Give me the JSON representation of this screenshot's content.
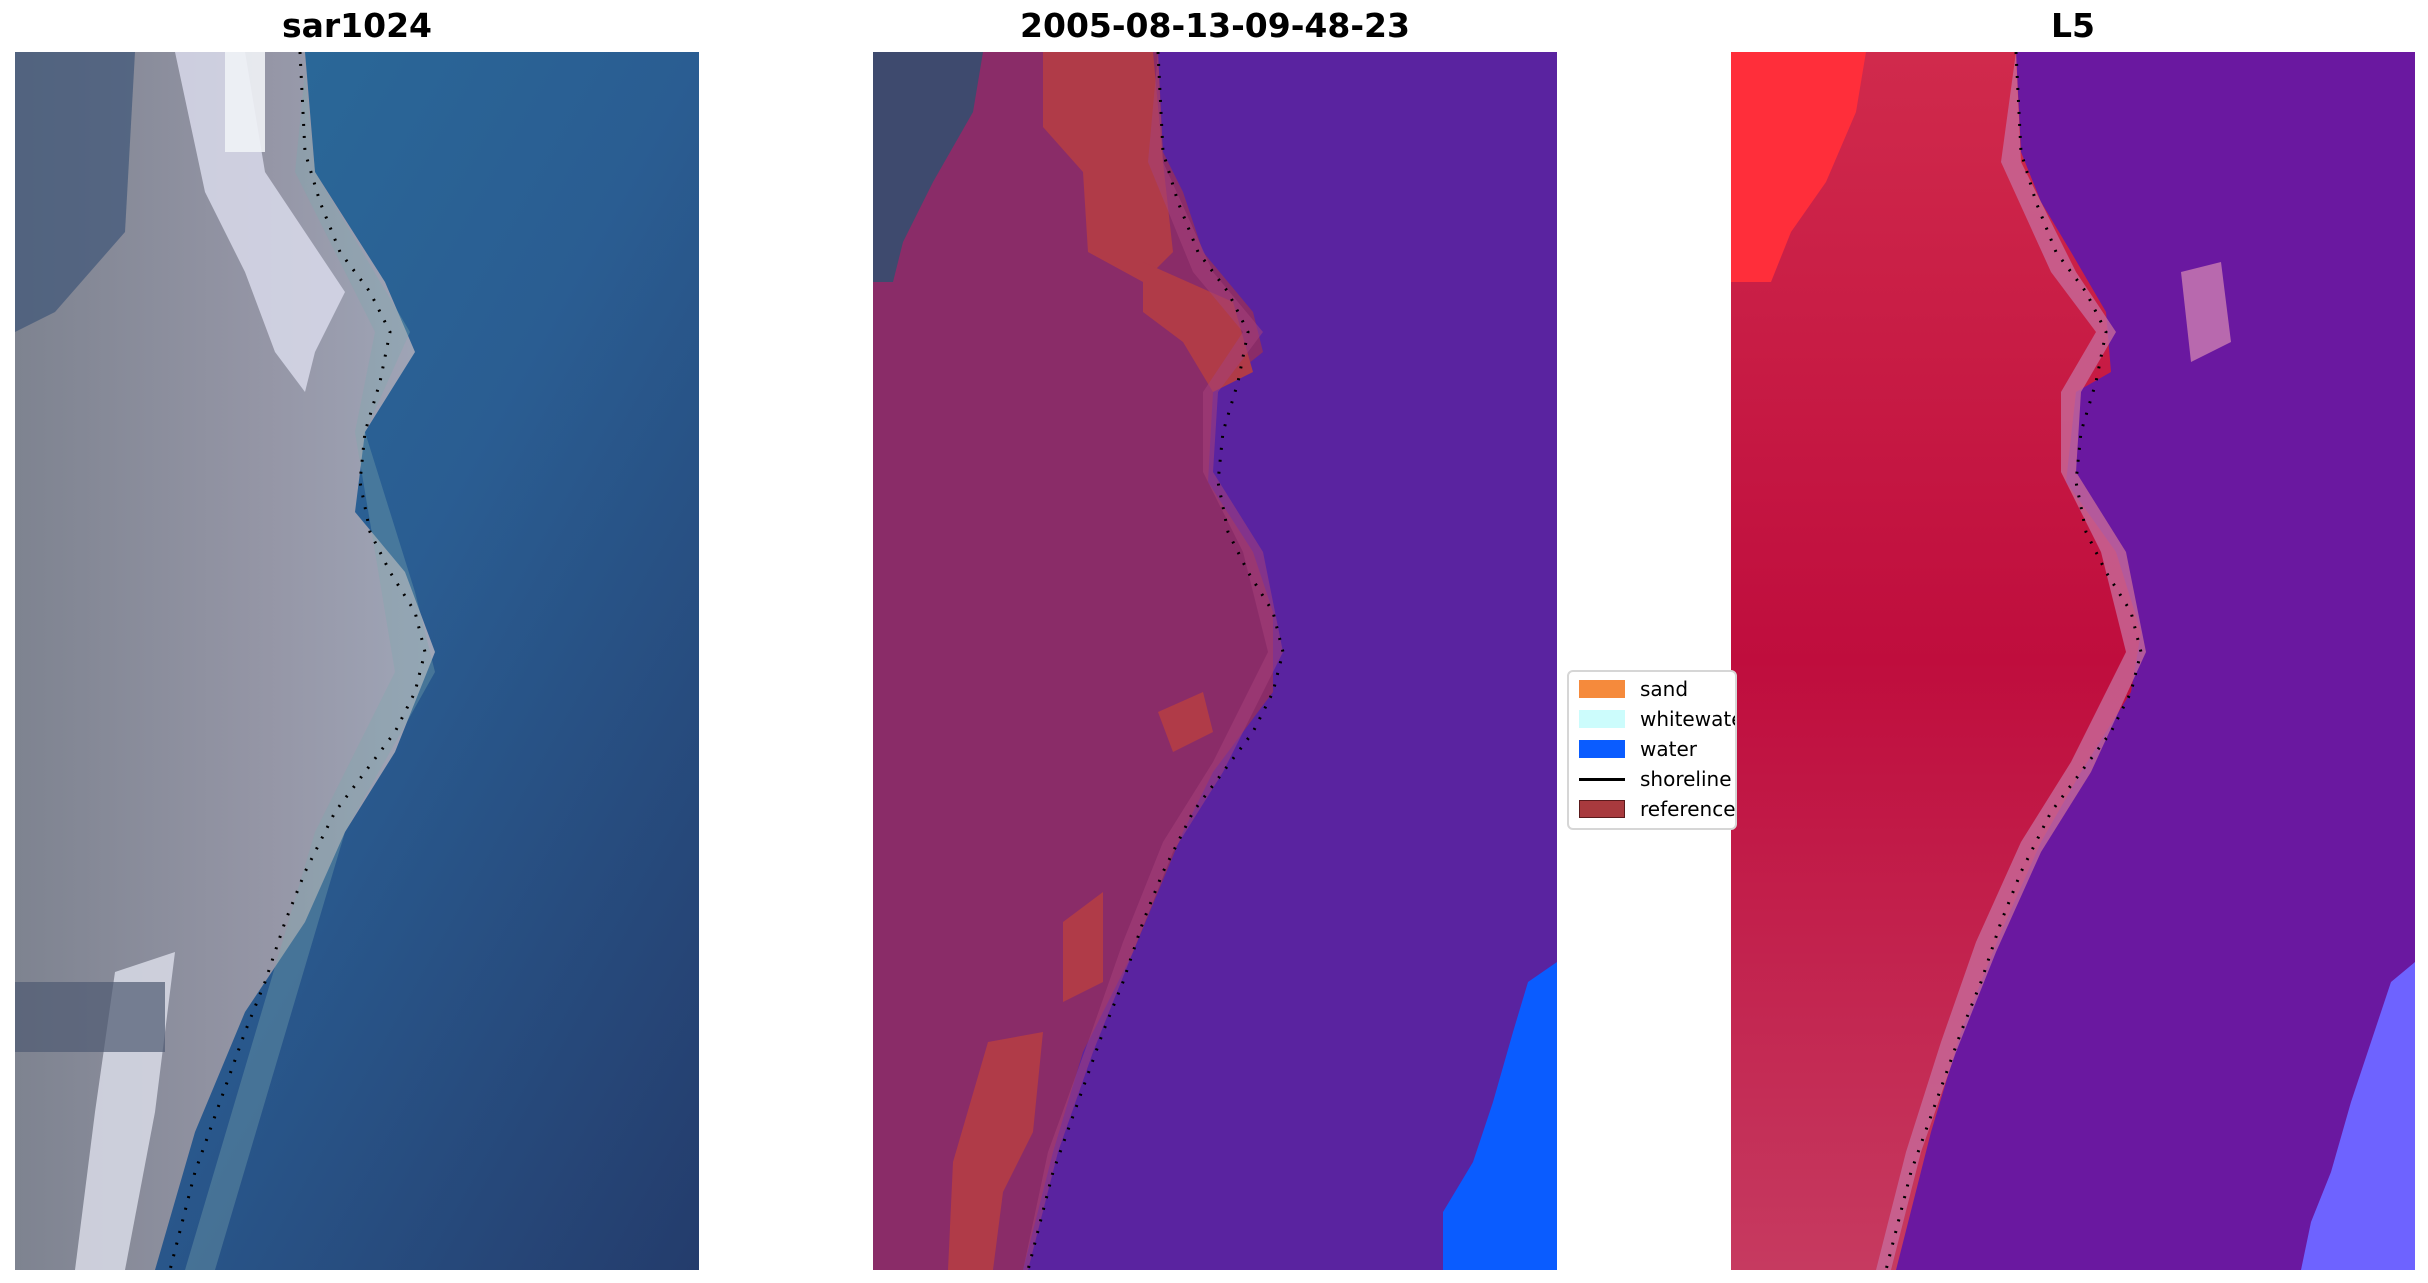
{
  "panels": [
    {
      "id": "rgb",
      "title": "sar1024",
      "icon": "satellite-rgb-image"
    },
    {
      "id": "classified",
      "title": "2005-08-13-09-48-23",
      "icon": "classified-image"
    },
    {
      "id": "index",
      "title": "L5",
      "icon": "water-index-image"
    }
  ],
  "legend": {
    "placement": "center",
    "items": [
      {
        "label": "sand",
        "color": "#f58a3c",
        "kind": "patch"
      },
      {
        "label": "whitewater",
        "color": "#ccfcfc",
        "kind": "patch"
      },
      {
        "label": "water",
        "color": "#0a5cff",
        "kind": "patch"
      },
      {
        "label": "shoreline",
        "color": "#000000",
        "kind": "line"
      },
      {
        "label": "reference",
        "color": "#a83a3e",
        "kind": "patch"
      }
    ]
  },
  "colors": {
    "sea_rgb": "#2c5a8f",
    "land_rgb": "#8d8e98",
    "water_class": "#5a23a0",
    "land_class": "#8a2c68",
    "index_land": "#c41b44",
    "index_water": "#6a18a0"
  }
}
